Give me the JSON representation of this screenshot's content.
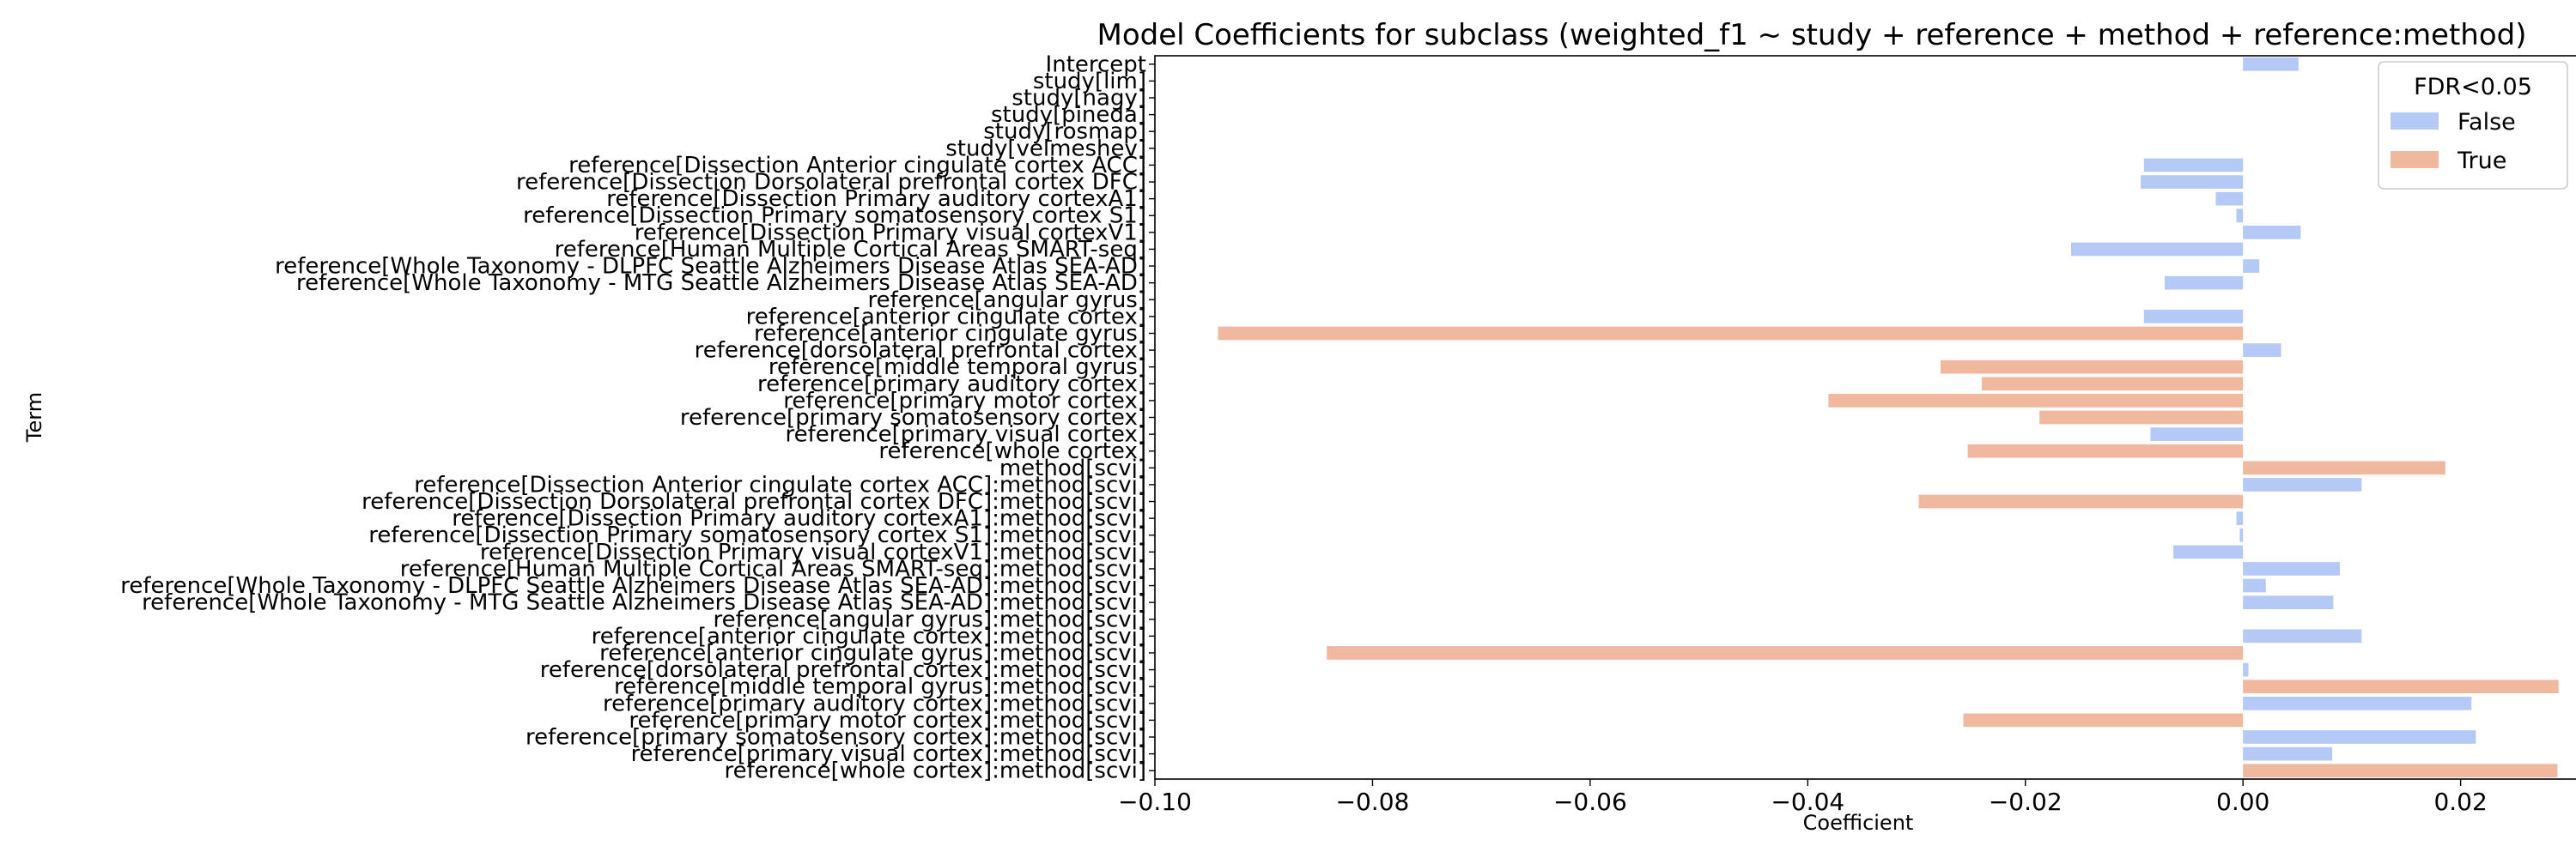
{
  "chart_data": {
    "type": "bar",
    "orientation": "horizontal",
    "title": "Model Coefficients for subclass (weighted_f1 ~ study + reference + method + reference:method)",
    "xlabel": "Coefficient",
    "ylabel": "Term",
    "xlim": [
      -0.1,
      0.031
    ],
    "xticks": [
      -0.1,
      -0.08,
      -0.06,
      -0.04,
      -0.02,
      0.0,
      0.02
    ],
    "xtick_labels": [
      "−0.10",
      "−0.08",
      "−0.06",
      "−0.04",
      "−0.02",
      "0.00",
      "0.02"
    ],
    "grid": false,
    "legend": {
      "title": "FDR<0.05",
      "placement": "top-right",
      "entries": [
        {
          "label": "False",
          "color": "#b4c9f6"
        },
        {
          "label": "True",
          "color": "#f0b89e"
        }
      ]
    },
    "terms": [
      "Intercept",
      "study[lim]",
      "study[nagy]",
      "study[pineda]",
      "study[rosmap]",
      "study[velmeshev]",
      "reference[Dissection Anterior cingulate cortex ACC]",
      "reference[Dissection Dorsolateral prefrontal cortex DFC]",
      "reference[Dissection Primary auditory cortexA1]",
      "reference[Dissection Primary somatosensory cortex S1]",
      "reference[Dissection Primary visual cortexV1]",
      "reference[Human Multiple Cortical Areas SMART-seq]",
      "reference[Whole Taxonomy - DLPFC Seattle Alzheimers Disease Atlas SEA-AD]",
      "reference[Whole Taxonomy - MTG Seattle Alzheimers Disease Atlas SEA-AD]",
      "reference[angular gyrus]",
      "reference[anterior cingulate cortex]",
      "reference[anterior cingulate gyrus]",
      "reference[dorsolateral prefrontal cortex]",
      "reference[middle temporal gyrus]",
      "reference[primary auditory cortex]",
      "reference[primary motor cortex]",
      "reference[primary somatosensory cortex]",
      "reference[primary visual cortex]",
      "reference[whole cortex]",
      "method[scvi]",
      "reference[Dissection Anterior cingulate cortex ACC]:method[scvi]",
      "reference[Dissection Dorsolateral prefrontal cortex DFC]:method[scvi]",
      "reference[Dissection Primary auditory cortexA1]:method[scvi]",
      "reference[Dissection Primary somatosensory cortex S1]:method[scvi]",
      "reference[Dissection Primary visual cortexV1]:method[scvi]",
      "reference[Human Multiple Cortical Areas SMART-seq]:method[scvi]",
      "reference[Whole Taxonomy - DLPFC Seattle Alzheimers Disease Atlas SEA-AD]:method[scvi]",
      "reference[Whole Taxonomy - MTG Seattle Alzheimers Disease Atlas SEA-AD]:method[scvi]",
      "reference[angular gyrus]:method[scvi]",
      "reference[anterior cingulate cortex]:method[scvi]",
      "reference[anterior cingulate gyrus]:method[scvi]",
      "reference[dorsolateral prefrontal cortex]:method[scvi]",
      "reference[middle temporal gyrus]:method[scvi]",
      "reference[primary auditory cortex]:method[scvi]",
      "reference[primary motor cortex]:method[scvi]",
      "reference[primary somatosensory cortex]:method[scvi]",
      "reference[primary visual cortex]:method[scvi]",
      "reference[whole cortex]:method[scvi]"
    ],
    "values": [
      0.0051,
      0,
      0,
      0,
      0,
      0,
      -0.0091,
      -0.0094,
      -0.0025,
      -0.0006,
      0.0053,
      -0.0158,
      0.0015,
      -0.0072,
      0,
      -0.0091,
      -0.0942,
      0.0035,
      -0.0278,
      -0.024,
      -0.0381,
      -0.0187,
      -0.0085,
      -0.0253,
      0.0186,
      0.0109,
      -0.0298,
      -0.0006,
      -0.0003,
      -0.0064,
      0.0089,
      0.0021,
      0.0083,
      0,
      0.0109,
      -0.0842,
      0.0005,
      0.029,
      0.021,
      -0.0257,
      0.0214,
      0.0082,
      0.0289
    ],
    "fdr_lt_0_05": [
      false,
      false,
      false,
      false,
      false,
      false,
      false,
      false,
      false,
      false,
      false,
      false,
      false,
      false,
      false,
      false,
      true,
      false,
      true,
      true,
      true,
      true,
      false,
      true,
      true,
      false,
      true,
      false,
      false,
      false,
      false,
      false,
      false,
      false,
      false,
      true,
      false,
      true,
      false,
      true,
      false,
      false,
      true
    ]
  }
}
